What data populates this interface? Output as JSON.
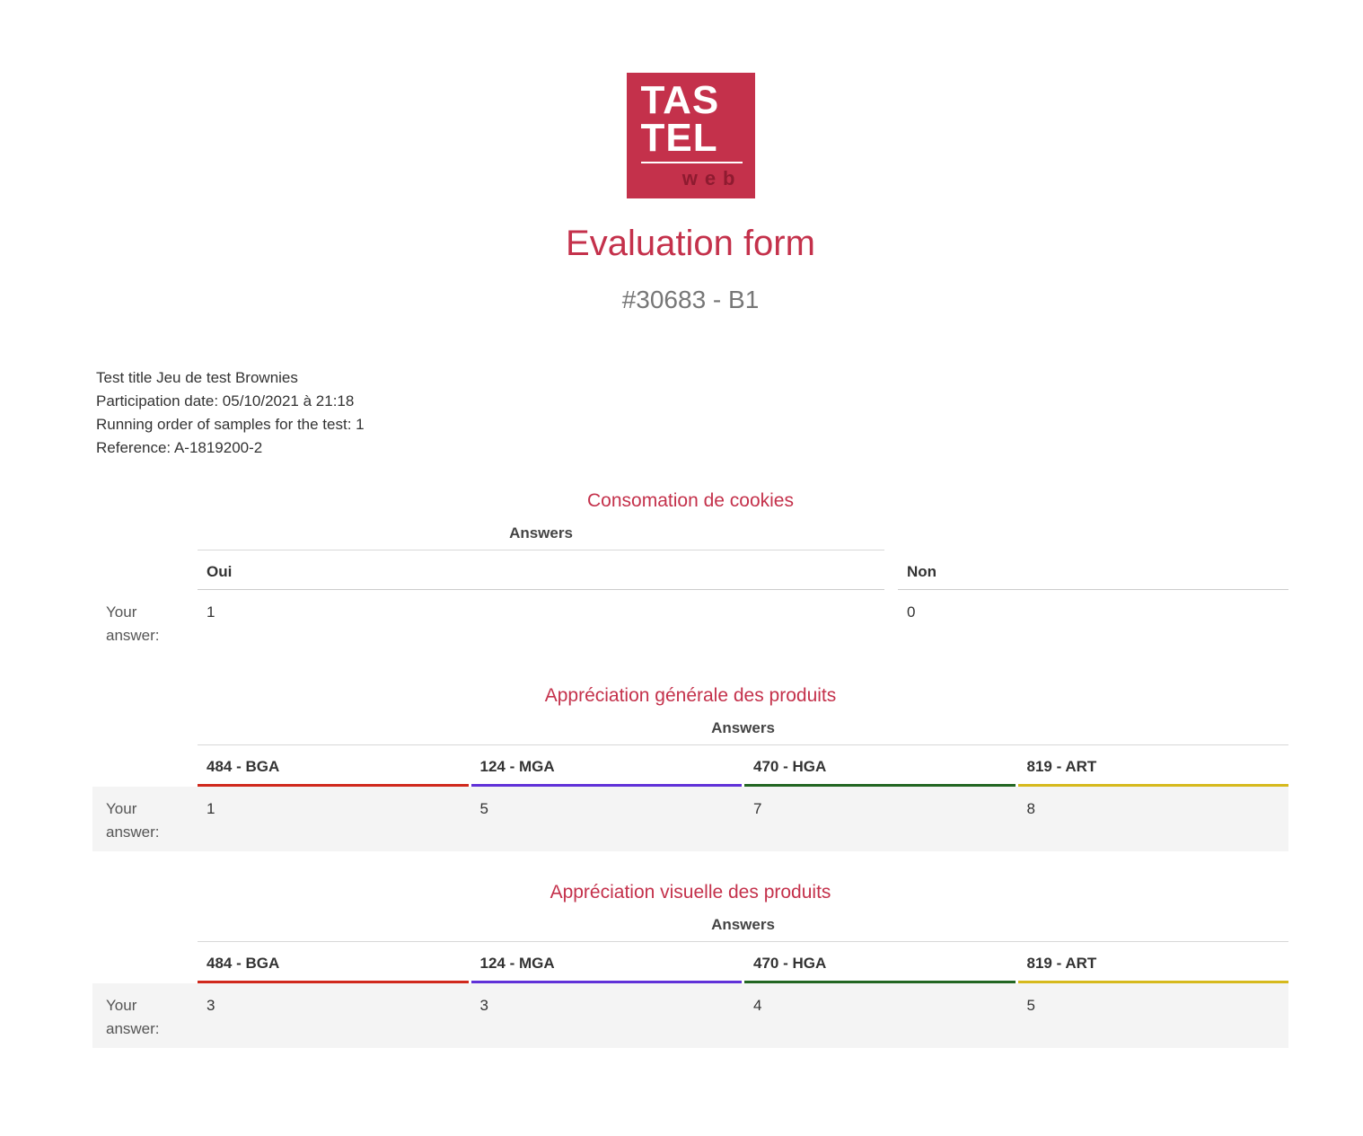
{
  "logo": {
    "line1": "TAS",
    "line2": "TEL",
    "word": "web",
    "bg_color": "#c4314b",
    "word_color": "#8e1b30"
  },
  "header": {
    "title": "Evaluation form",
    "subtitle": "#30683 - B1",
    "accent_color": "#c4314b"
  },
  "info": {
    "lines": [
      "Test title Jeu de test Brownies",
      "Participation date: 05/10/2021 à 21:18",
      "Running order of samples for the test: 1",
      "Reference: A-1819200-2"
    ]
  },
  "sections": [
    {
      "title": "Consomation de cookies",
      "answers_label": "Answers",
      "row_label": "Your answer:",
      "columns": [
        {
          "label": "Oui",
          "value": "1"
        },
        {
          "label": "Non",
          "value": "0"
        }
      ]
    },
    {
      "title": "Appréciation générale des produits",
      "answers_label": "Answers",
      "row_label": "Your answer:",
      "columns": [
        {
          "label": "484 - BGA",
          "value": "1",
          "color": "#d0281c"
        },
        {
          "label": "124 - MGA",
          "value": "5",
          "color": "#6031d8"
        },
        {
          "label": "470 - HGA",
          "value": "7",
          "color": "#226622"
        },
        {
          "label": "819 - ART",
          "value": "8",
          "color": "#d6b91c"
        }
      ]
    },
    {
      "title": "Appréciation visuelle des produits",
      "answers_label": "Answers",
      "row_label": "Your answer:",
      "columns": [
        {
          "label": "484 - BGA",
          "value": "3",
          "color": "#d0281c"
        },
        {
          "label": "124 - MGA",
          "value": "3",
          "color": "#6031d8"
        },
        {
          "label": "470 - HGA",
          "value": "4",
          "color": "#226622"
        },
        {
          "label": "819 - ART",
          "value": "5",
          "color": "#d6b91c"
        }
      ]
    }
  ]
}
